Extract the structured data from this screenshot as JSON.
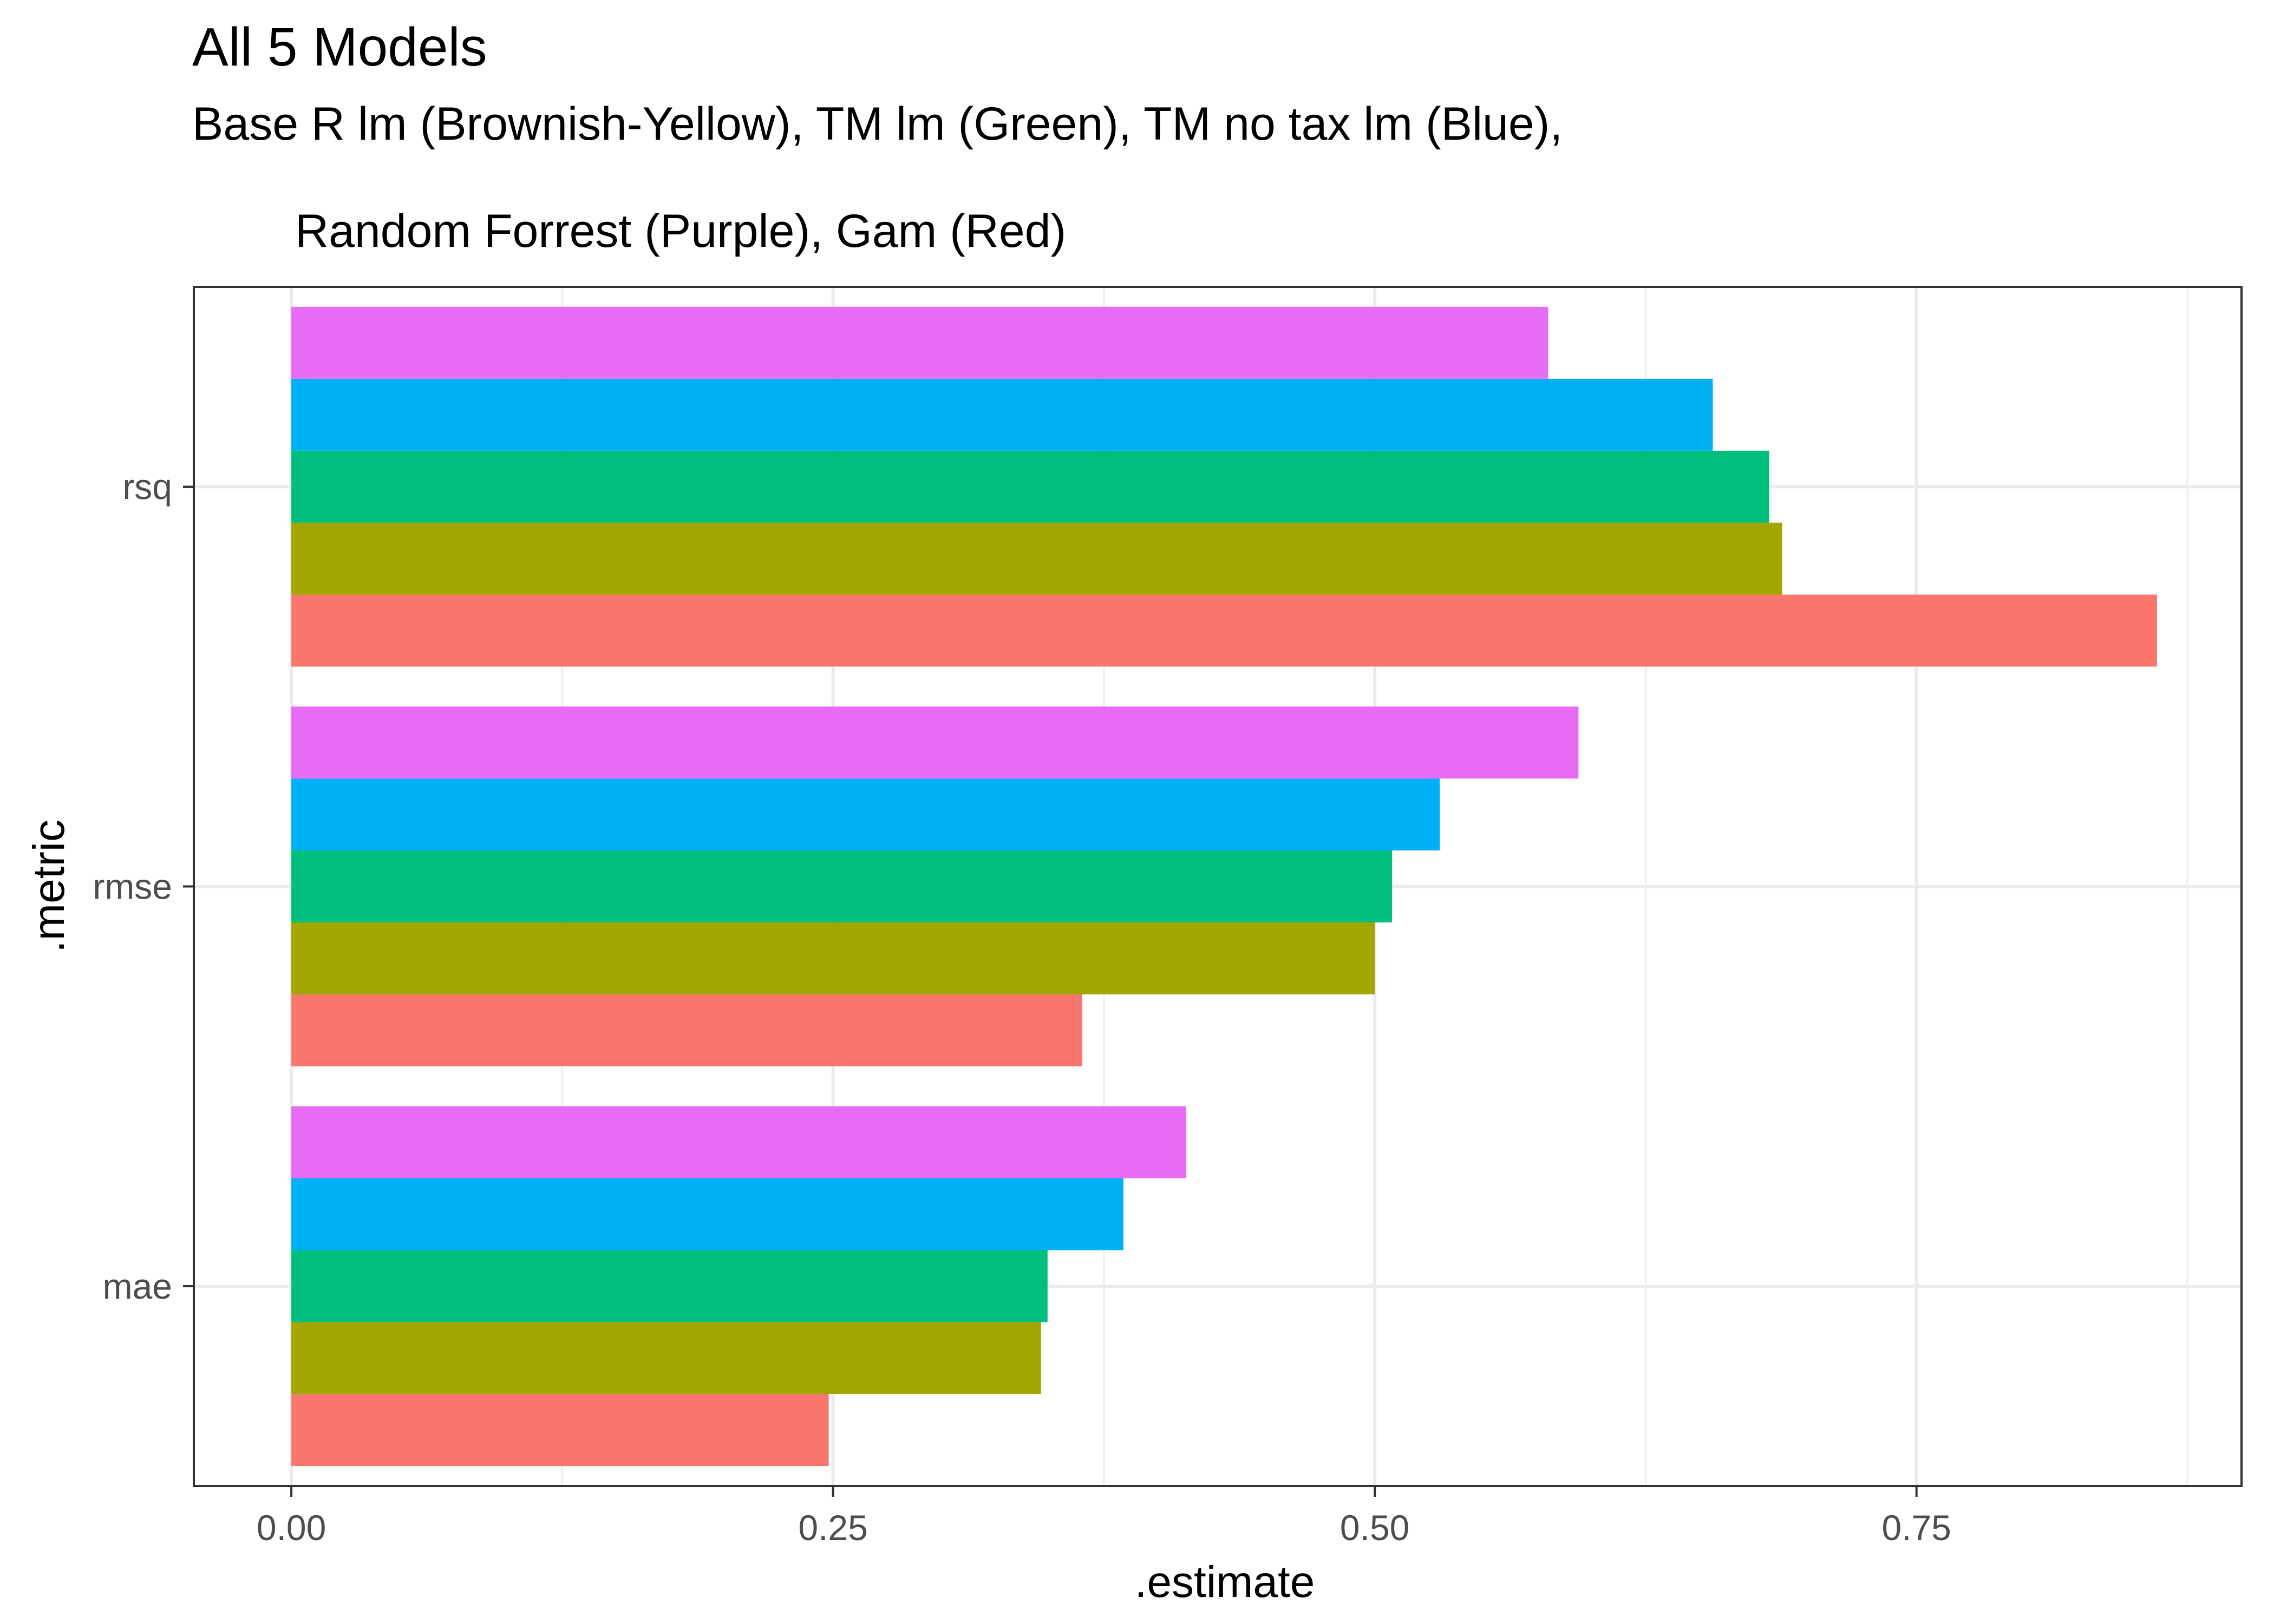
{
  "chart_data": {
    "type": "bar",
    "orientation": "horizontal",
    "title": "All 5 Models",
    "subtitle_line1": "Base R lm (Brownish-Yellow), TM lm (Green), TM no tax lm (Blue),",
    "subtitle_line2": "Random Forrest (Purple), Gam (Red)",
    "xlabel": ".estimate",
    "ylabel": ".metric",
    "categories": [
      "rsq",
      "rmse",
      "mae"
    ],
    "xlim": [
      -0.045,
      0.9
    ],
    "xticks": [
      0.0,
      0.25,
      0.5,
      0.75
    ],
    "xtick_labels": [
      "0.00",
      "0.25",
      "0.50",
      "0.75"
    ],
    "grid": true,
    "series": [
      {
        "color": "#F8766D",
        "values": [
          0.861,
          0.365,
          0.248
        ]
      },
      {
        "color": "#A3A500",
        "values": [
          0.688,
          0.5,
          0.346
        ]
      },
      {
        "color": "#00BF7D",
        "values": [
          0.682,
          0.508,
          0.349
        ]
      },
      {
        "color": "#00B0F6",
        "values": [
          0.656,
          0.53,
          0.384
        ]
      },
      {
        "color": "#E76BF3",
        "values": [
          0.58,
          0.594,
          0.413
        ]
      }
    ]
  }
}
